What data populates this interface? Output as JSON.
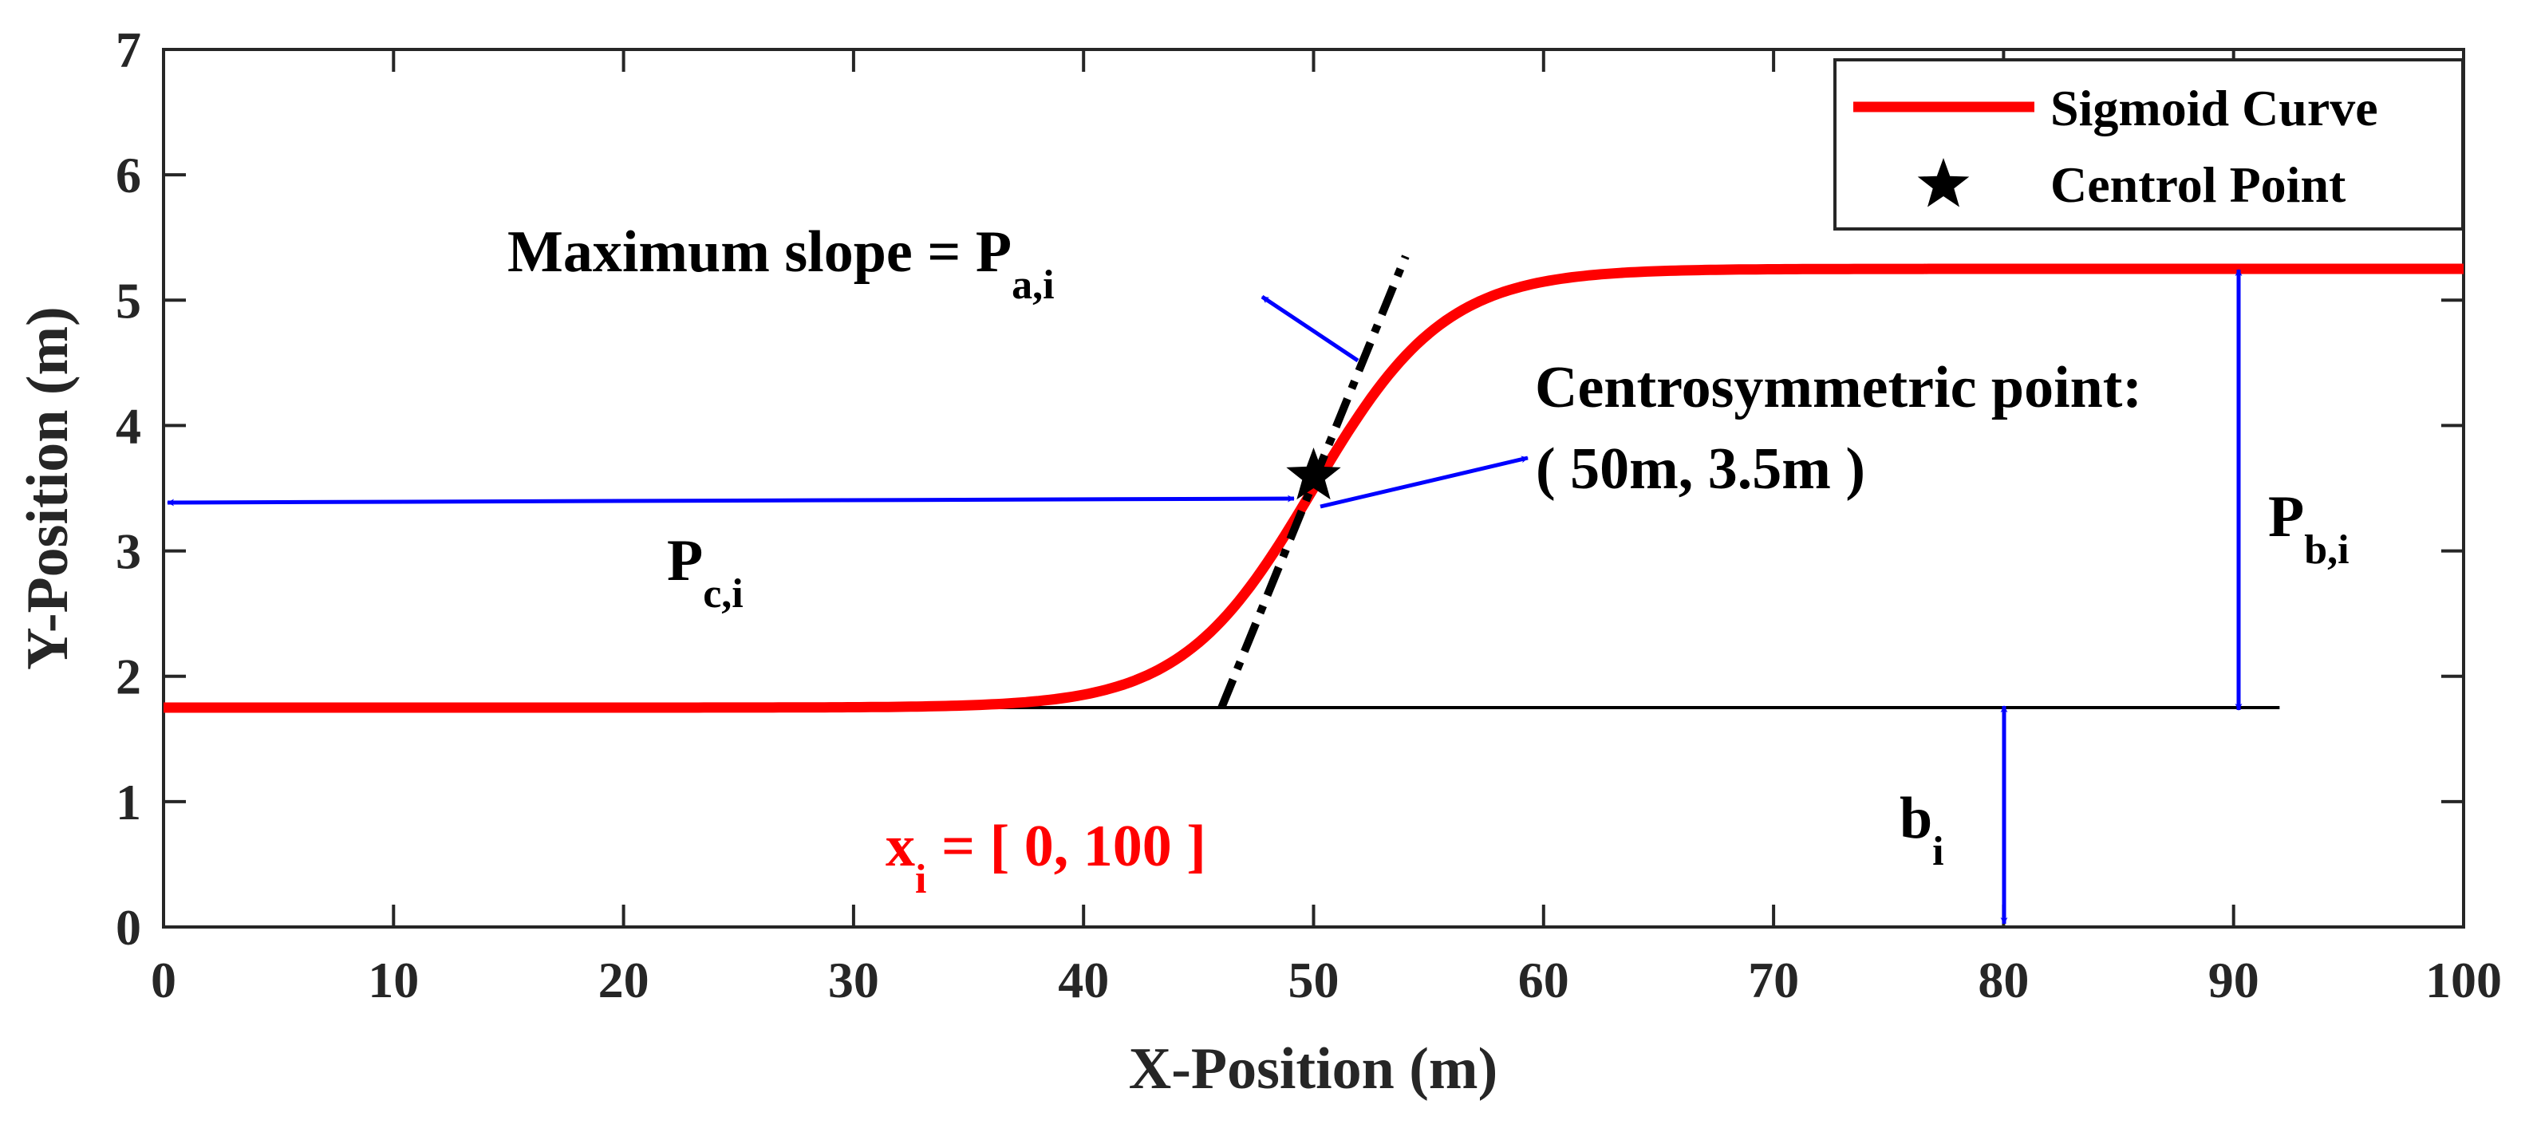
{
  "chart_data": {
    "type": "line",
    "title": "",
    "xlabel": "X-Position (m)",
    "ylabel": "Y-Position (m)",
    "xlim": [
      0,
      100
    ],
    "ylim": [
      0,
      7
    ],
    "grid": false,
    "xticks": [
      0,
      10,
      20,
      30,
      40,
      50,
      60,
      70,
      80,
      90,
      100
    ],
    "yticks": [
      0,
      1,
      2,
      3,
      4,
      5,
      6,
      7
    ],
    "series": [
      {
        "name": "Sigmoid Curve",
        "color": "#ff0000",
        "function": "sigmoid",
        "params": {
          "a": 0.35,
          "b": 1.75,
          "c": 50,
          "height": 3.5
        },
        "x": [
          0,
          30,
          40,
          42,
          44,
          46,
          48,
          50,
          52,
          54,
          56,
          58,
          60,
          70,
          100
        ],
        "y": [
          1.75,
          1.75,
          1.86,
          1.92,
          2.04,
          2.3,
          2.8,
          3.5,
          4.2,
          4.7,
          4.96,
          5.08,
          5.14,
          5.25,
          5.25
        ]
      }
    ],
    "control_point": {
      "name": "Centrol Point",
      "x": 50,
      "y": 3.5,
      "color": "#000000"
    },
    "tangent_line": {
      "from": [
        46,
        1.75
      ],
      "to": [
        54,
        5.35
      ],
      "color": "#000000"
    },
    "baseline": {
      "from": [
        30,
        1.75
      ],
      "to": [
        92,
        1.75
      ]
    },
    "legend": {
      "position": "top-right",
      "entries": [
        {
          "label": "Sigmoid Curve",
          "marker": "line",
          "color": "#ff0000"
        },
        {
          "label": "Centrol Point",
          "marker": "star",
          "color": "#000000"
        }
      ]
    },
    "annotations": {
      "max_slope": {
        "text": "Maximum  slope = P",
        "sub": "a,i"
      },
      "centro_title": {
        "text": "Centrosymmetric point:"
      },
      "centro_value": {
        "text": "( 50m, 3.5m )"
      },
      "pc": {
        "text": "P",
        "sub": "c,i"
      },
      "pb": {
        "text": "P",
        "sub": "b,i"
      },
      "b": {
        "text": "b",
        "sub": "i"
      },
      "x_range": {
        "text": " = [ 0, 100 ]",
        "var": "x",
        "sub": "i",
        "color": "#ff0000"
      }
    },
    "arrow_color": "#0000ff"
  }
}
